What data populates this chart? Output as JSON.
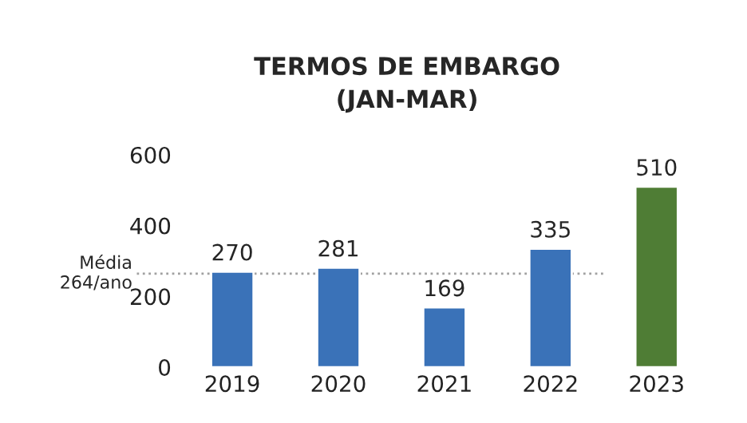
{
  "chart_data": {
    "type": "bar",
    "title": "TERMOS DE EMBARGO\n(JAN-MAR)",
    "categories": [
      "2019",
      "2020",
      "2021",
      "2022",
      "2023"
    ],
    "values": [
      270,
      281,
      169,
      335,
      510
    ],
    "colors": [
      "#3a72b8",
      "#3a72b8",
      "#3a72b8",
      "#3a72b8",
      "#4f7d35"
    ],
    "ylim": [
      0,
      600
    ],
    "yticks": [
      0,
      200,
      400,
      600
    ],
    "ref_lines": [
      {
        "axis": "y",
        "value": 264,
        "label": "Média\n264/ano",
        "color": "#a0a0a0",
        "line_style": "dotted"
      }
    ],
    "data_labels": true,
    "grid": false
  }
}
